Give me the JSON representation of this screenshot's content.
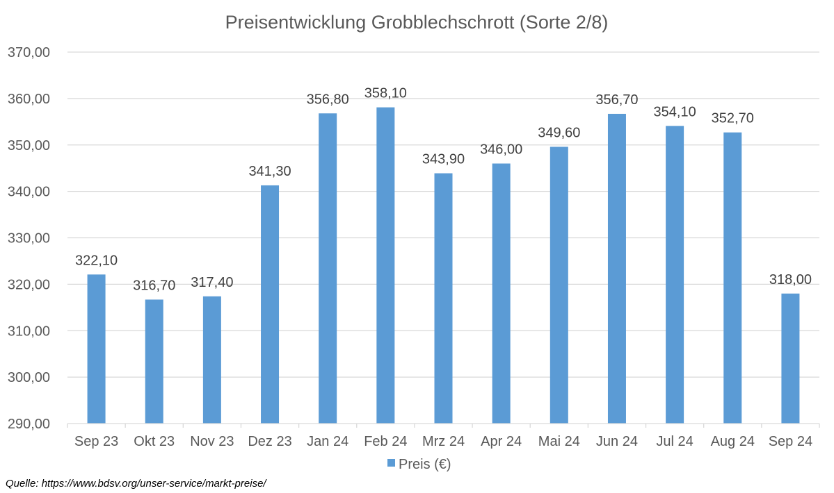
{
  "chart_data": {
    "type": "bar",
    "title": "Preisentwicklung Grobblechschrott (Sorte 2/8)",
    "categories": [
      "Sep 23",
      "Okt 23",
      "Nov 23",
      "Dez 23",
      "Jan 24",
      "Feb 24",
      "Mrz 24",
      "Apr 24",
      "Mai 24",
      "Jun 24",
      "Jul 24",
      "Aug 24",
      "Sep 24"
    ],
    "series": [
      {
        "name": "Preis (€)",
        "values": [
          322.1,
          316.7,
          317.4,
          341.3,
          356.8,
          358.1,
          343.9,
          346.0,
          349.6,
          356.7,
          354.1,
          352.7,
          318.0
        ],
        "labels": [
          "322,10",
          "316,70",
          "317,40",
          "341,30",
          "356,80",
          "358,10",
          "343,90",
          "346,00",
          "349,60",
          "356,70",
          "354,10",
          "352,70",
          "318,00"
        ]
      }
    ],
    "ylim": [
      290,
      370
    ],
    "yticks": [
      290,
      300,
      310,
      320,
      330,
      340,
      350,
      360,
      370
    ],
    "ytick_labels": [
      "290,00",
      "300,00",
      "310,00",
      "320,00",
      "330,00",
      "340,00",
      "350,00",
      "360,00",
      "370,00"
    ],
    "grid": true,
    "legend_position": "bottom",
    "xlabel": "",
    "ylabel": ""
  },
  "colors": {
    "bar": "#5B9BD5",
    "grid": "#D9D9D9",
    "axis": "#D9D9D9"
  },
  "source_note": "Quelle: https://www.bdsv.org/unser-service/markt-preise/"
}
